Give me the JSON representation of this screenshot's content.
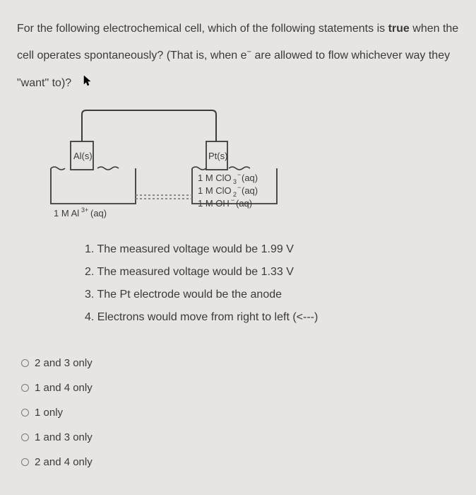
{
  "question": {
    "text_html": "For the following electrochemical cell, which of the following statements is <span class='bold'>true</span> when the cell operates spontaneously?  (That is, when e<sup>−</sup> are allowed to flow whichever way they \"want\" to)?"
  },
  "diagram": {
    "left_electrode": "Al(s)",
    "left_solution": "1 M Al<sup>3+</sup>(aq)",
    "right_electrode": "Pt(s)",
    "right_solutions": [
      "1 M ClO<sub>3</sub><sup>−</sup>(aq)",
      "1 M ClO<sub>2</sub><sup>−</sup>(aq)",
      "1 M OH<sup>−</sup>(aq)"
    ],
    "colors": {
      "line": "#3b3b3b",
      "bg": "#e7e5e2",
      "bridge": "#8c8c8c"
    }
  },
  "statements": [
    "1.  The measured voltage would be 1.99 V",
    "2.  The measured voltage would be 1.33 V",
    "3.  The Pt electrode would be the anode",
    "4.  Electrons would move from right to left (<---)"
  ],
  "options": [
    "2 and 3 only",
    "1 and 4 only",
    "1 only",
    "1 and 3 only",
    "2 and 4 only"
  ]
}
